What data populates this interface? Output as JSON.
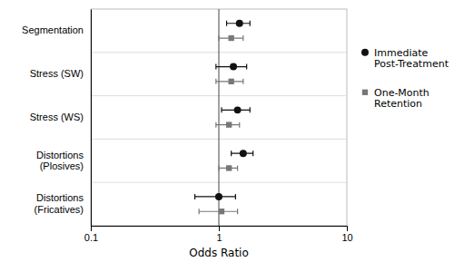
{
  "chart_data": {
    "type": "forest",
    "categories": [
      "Segmentation",
      "Stress (SW)",
      "Stress (WS)",
      "Distortions\n(Plosives)",
      "Distortions\n(Fricatives)"
    ],
    "series": [
      {
        "name": "Immediate\nPost-Treatment",
        "color": "#111111",
        "marker": "circle",
        "values": [
          1.45,
          1.3,
          1.4,
          1.55,
          1.0
        ],
        "ci_lo": [
          1.15,
          0.95,
          1.05,
          1.25,
          0.65
        ],
        "ci_hi": [
          1.75,
          1.65,
          1.75,
          1.85,
          1.35
        ]
      },
      {
        "name": "One-Month\nRetention",
        "color": "#777777",
        "marker": "square",
        "values": [
          1.25,
          1.25,
          1.2,
          1.2,
          1.05
        ],
        "ci_lo": [
          1.0,
          0.95,
          0.95,
          1.0,
          0.7
        ],
        "ci_hi": [
          1.55,
          1.55,
          1.45,
          1.4,
          1.4
        ]
      }
    ],
    "xlabel": "Odds Ratio",
    "xlim": [
      0.1,
      10
    ],
    "xticks": [
      0.1,
      1,
      10
    ],
    "log": "x",
    "reference_line": 1.0,
    "grid": false,
    "legend": "right"
  }
}
